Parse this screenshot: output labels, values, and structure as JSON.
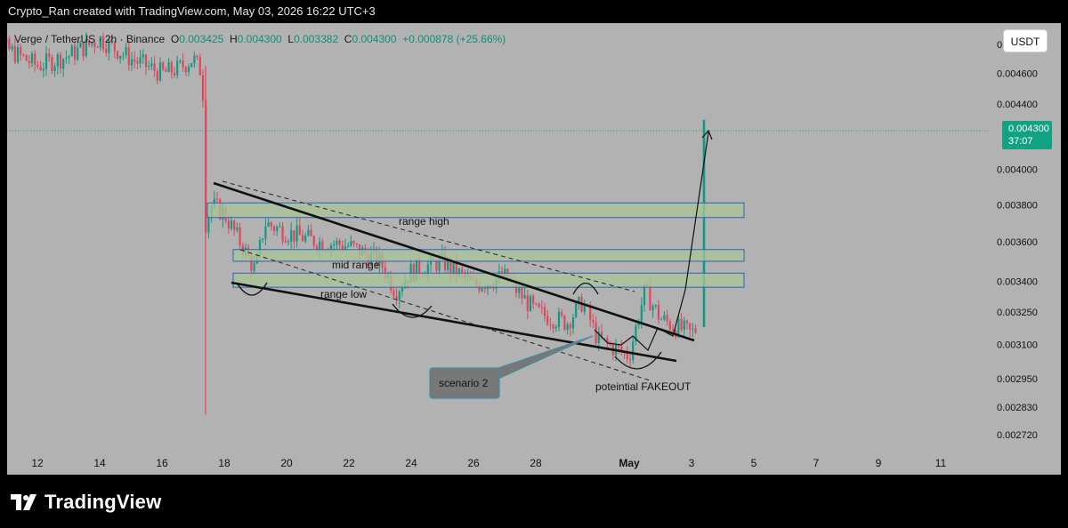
{
  "header": {
    "attribution": "Crypto_Ran created with TradingView.com, May 03, 2026 16:22 UTC+3"
  },
  "legend": {
    "symbol": "Verge / TetherUS · 2h · Binance",
    "open_label": "O",
    "open_value": "0.003425",
    "high_label": "H",
    "high_value": "0.004300",
    "low_label": "L",
    "low_value": "0.003382",
    "close_label": "C",
    "close_value": "0.004300",
    "change": "+0.000878 (+25.66%)"
  },
  "toolbar": {
    "currency_button": "USDT"
  },
  "price_tag": {
    "price": "0.004300",
    "countdown": "37:07"
  },
  "footer": {
    "brand": "TradingView"
  },
  "colors": {
    "background": "#b2b2b2",
    "up_candle": "#0f9a84",
    "down_candle": "#e0475a",
    "zone_fill": "#a9c49a",
    "zone_border": "#2c63b8",
    "price_tag": "#12a182"
  },
  "chart_data": {
    "type": "candlestick",
    "title": "Verge / TetherUS · 2h · Binance",
    "xlabel": "",
    "ylabel": "",
    "x_tick_labels": [
      "12",
      "14",
      "16",
      "18",
      "20",
      "22",
      "24",
      "26",
      "28",
      "May",
      "3",
      "5",
      "7",
      "9",
      "11"
    ],
    "y_tick_labels": [
      "0.004800",
      "0.004600",
      "0.004400",
      "0.004000",
      "0.003800",
      "0.003600",
      "0.003400",
      "0.003250",
      "0.003100",
      "0.002950",
      "0.002830",
      "0.002720"
    ],
    "y_scale": "log",
    "y_range": [
      0.00266,
      0.00495
    ],
    "grid": false,
    "price_path": [
      {
        "date": "Apr 10",
        "price": 0.00488
      },
      {
        "date": "Apr 11",
        "price": 0.00477
      },
      {
        "date": "Apr 12",
        "price": 0.00465
      },
      {
        "date": "Apr 13",
        "price": 0.00472
      },
      {
        "date": "Apr 14",
        "price": 0.00484
      },
      {
        "date": "Apr 15",
        "price": 0.0047
      },
      {
        "date": "Apr 16",
        "price": 0.0046
      },
      {
        "date": "Apr 16.5",
        "price": 0.00463
      },
      {
        "date": "Apr 17",
        "price": 0.0047
      },
      {
        "date": "Apr 17.3",
        "price": 0.0046
      },
      {
        "date": "Apr 17.4",
        "price": 0.0037
      },
      {
        "date": "Apr 17.6",
        "price": 0.0038
      },
      {
        "date": "Apr 18",
        "price": 0.00375
      },
      {
        "date": "Apr 18.5",
        "price": 0.0036
      },
      {
        "date": "Apr 19",
        "price": 0.00345
      },
      {
        "date": "Apr 19.3",
        "price": 0.0037
      },
      {
        "date": "Apr 20",
        "price": 0.00365
      },
      {
        "date": "Apr 21",
        "price": 0.0036
      },
      {
        "date": "Apr 22",
        "price": 0.00358
      },
      {
        "date": "Apr 23",
        "price": 0.0035
      },
      {
        "date": "Apr 23.5",
        "price": 0.00335
      },
      {
        "date": "Apr 24",
        "price": 0.00345
      },
      {
        "date": "Apr 25",
        "price": 0.0035
      },
      {
        "date": "Apr 26",
        "price": 0.00338
      },
      {
        "date": "Apr 27",
        "price": 0.00342
      },
      {
        "date": "Apr 28",
        "price": 0.00325
      },
      {
        "date": "Apr 29",
        "price": 0.0032
      },
      {
        "date": "Apr 29.5",
        "price": 0.0033
      },
      {
        "date": "Apr 30",
        "price": 0.00312
      },
      {
        "date": "May 1",
        "price": 0.00305
      },
      {
        "date": "May 1.5",
        "price": 0.00335
      },
      {
        "date": "May 2",
        "price": 0.00322
      },
      {
        "date": "May 2.5",
        "price": 0.00318
      },
      {
        "date": "May 3",
        "price": 0.00315
      },
      {
        "date": "May 3.2",
        "price": 0.00318
      },
      {
        "date": "May 3.4",
        "price": 0.0043
      }
    ],
    "last_price": 0.0043,
    "zones": [
      {
        "label": "range high",
        "low": 0.00373,
        "high": 0.00381
      },
      {
        "label": "mid range",
        "low": 0.0035,
        "high": 0.00356
      },
      {
        "label": "range low",
        "low": 0.00337,
        "high": 0.00344
      }
    ],
    "annotations": [
      "range high",
      "mid range",
      "range low",
      "scenario 2",
      "poteintial FAKEOUT"
    ]
  }
}
